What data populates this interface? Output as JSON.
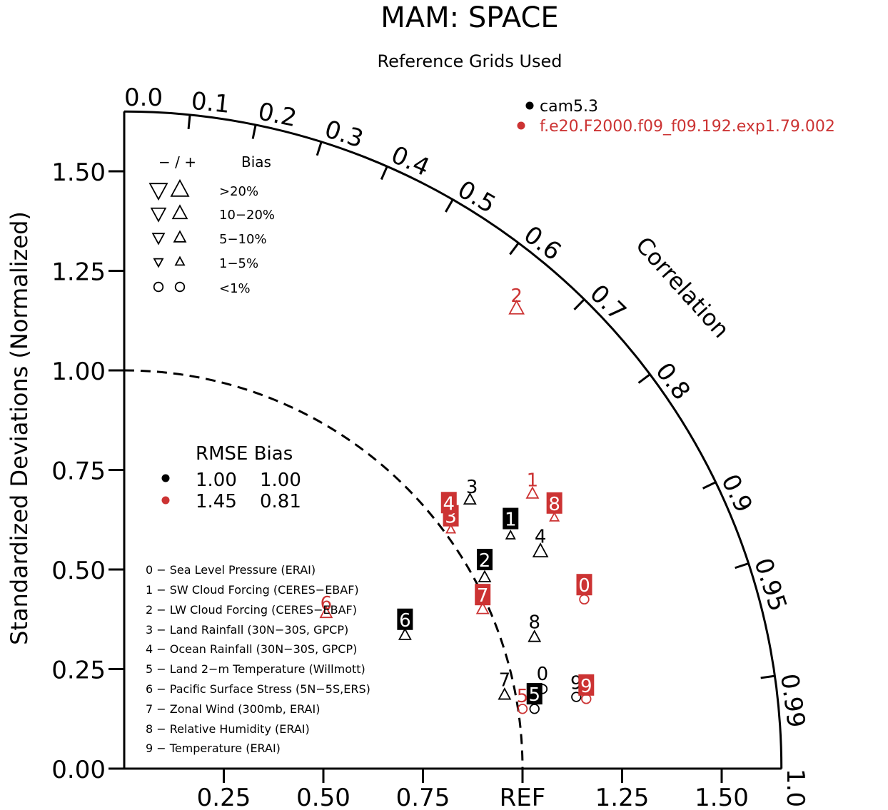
{
  "chart_data": {
    "type": "scatter",
    "subtype": "taylor-diagram",
    "title": "MAM: SPACE",
    "subtitle": "Reference Grids Used",
    "ylabel": "Standardized Deviations (Normalized)",
    "arc_label": "Correlation",
    "ref_label": "REF",
    "std_range": [
      0,
      1.65
    ],
    "y_ticks": [
      "0.00",
      "0.25",
      "0.50",
      "0.75",
      "1.00",
      "1.25",
      "1.50"
    ],
    "x_ticks": [
      "0.25",
      "0.50",
      "0.75",
      "1.25",
      "1.50"
    ],
    "correlation_ticks": [
      "0.0",
      "0.1",
      "0.2",
      "0.3",
      "0.4",
      "0.5",
      "0.6",
      "0.7",
      "0.8",
      "0.9",
      "0.95",
      "0.99",
      "1.0"
    ],
    "colors": {
      "cam": "#000000",
      "f20": "#cc3333"
    },
    "legend_cases": [
      {
        "name": "cam5.3",
        "color": "#000000"
      },
      {
        "name": "f.e20.F2000.f09_f09.192.exp1.79.002",
        "color": "#cc3333"
      }
    ],
    "bias_legend": {
      "header_sign": "− / +",
      "header_bias": "Bias",
      "rows": [
        {
          "label": ">20%",
          "symbol": "triangle",
          "size": 1.0
        },
        {
          "label": "10−20%",
          "symbol": "triangle",
          "size": 0.82
        },
        {
          "label": "5−10%",
          "symbol": "triangle",
          "size": 0.66
        },
        {
          "label": "1−5%",
          "symbol": "triangle",
          "size": 0.5
        },
        {
          "label": "<1%",
          "symbol": "circle",
          "size": 0.7
        }
      ]
    },
    "rmse_table": {
      "header": "RMSE Bias",
      "rows": [
        {
          "color": "#000000",
          "rmse": "1.00",
          "bias": "1.00"
        },
        {
          "color": "#cc3333",
          "rmse": "1.45",
          "bias": "0.81"
        }
      ]
    },
    "variables": [
      "0 − Sea Level Pressure (ERAI)",
      "1 − SW Cloud Forcing (CERES−EBAF)",
      "2 − LW Cloud Forcing (CERES−EBAF)",
      "3 − Land Rainfall (30N−30S, GPCP)",
      "4 − Ocean Rainfall (30N−30S, GPCP)",
      "5 − Land 2−m Temperature (Willmott)",
      "6 − Pacific Surface Stress (5N−5S,ERS)",
      "7 − Zonal Wind (300mb, ERAI)",
      "8 − Relative Humidity (ERAI)",
      "9 − Temperature (ERAI)"
    ],
    "series": [
      {
        "name": "cam5.3",
        "color": "#000000",
        "points": [
          {
            "label": "0",
            "x": 1.05,
            "y": 0.2,
            "marker": "circle",
            "size": 0.7,
            "boxed": false,
            "lx": 1.05,
            "ly": 0.24
          },
          {
            "label": "1",
            "x": 0.97,
            "y": 0.585,
            "marker": "triangle-up",
            "size": 0.5,
            "boxed": true,
            "lx": 0.97,
            "ly": 0.628
          },
          {
            "label": "2",
            "x": 0.905,
            "y": 0.48,
            "marker": "triangle-up",
            "size": 0.66,
            "boxed": true,
            "lx": 0.905,
            "ly": 0.525
          },
          {
            "label": "3",
            "x": 0.868,
            "y": 0.675,
            "marker": "triangle-up",
            "size": 0.66,
            "boxed": false,
            "lx": 0.873,
            "ly": 0.71
          },
          {
            "label": "4",
            "x": 1.045,
            "y": 0.545,
            "marker": "triangle-up",
            "size": 0.82,
            "boxed": false,
            "lx": 1.045,
            "ly": 0.585
          },
          {
            "label": "5",
            "x": 1.03,
            "y": 0.15,
            "marker": "circle",
            "size": 0.7,
            "boxed": true,
            "lx": 1.03,
            "ly": 0.188
          },
          {
            "label": "6",
            "x": 0.705,
            "y": 0.335,
            "marker": "triangle-up",
            "size": 0.66,
            "boxed": true,
            "lx": 0.705,
            "ly": 0.375
          },
          {
            "label": "7",
            "x": 0.955,
            "y": 0.185,
            "marker": "triangle-up",
            "size": 0.66,
            "boxed": false,
            "lx": 0.955,
            "ly": 0.225
          },
          {
            "label": "8",
            "x": 1.03,
            "y": 0.33,
            "marker": "triangle-up",
            "size": 0.66,
            "boxed": false,
            "lx": 1.03,
            "ly": 0.37
          },
          {
            "label": "9",
            "x": 1.135,
            "y": 0.18,
            "marker": "circle",
            "size": 0.7,
            "boxed": false,
            "lx": 1.135,
            "ly": 0.218
          }
        ]
      },
      {
        "name": "f.e20.F2000.f09_f09.192.exp1.79.002",
        "color": "#cc3333",
        "points": [
          {
            "label": "0",
            "x": 1.155,
            "y": 0.425,
            "marker": "circle",
            "size": 0.7,
            "boxed": true,
            "lx": 1.155,
            "ly": 0.462
          },
          {
            "label": "1",
            "x": 1.025,
            "y": 0.69,
            "marker": "triangle-up",
            "size": 0.66,
            "boxed": false,
            "lx": 1.025,
            "ly": 0.727
          },
          {
            "label": "2",
            "x": 0.985,
            "y": 1.155,
            "marker": "triangle-up",
            "size": 0.82,
            "boxed": false,
            "lx": 0.985,
            "ly": 1.19
          },
          {
            "label": "3",
            "x": 0.82,
            "y": 0.6,
            "marker": "triangle-up",
            "size": 0.5,
            "boxed": true,
            "lx": 0.82,
            "ly": 0.635
          },
          {
            "label": "4",
            "x": 0.815,
            "y": 0.668,
            "marker": "triangle-up",
            "size": 0.5,
            "boxed": true,
            "lx": 0.815,
            "ly": 0.668
          },
          {
            "label": "5",
            "x": 1.0,
            "y": 0.15,
            "marker": "circle",
            "size": 0.7,
            "boxed": false,
            "lx": 1.0,
            "ly": 0.185
          },
          {
            "label": "6",
            "x": 0.507,
            "y": 0.39,
            "marker": "triangle-up",
            "size": 0.66,
            "boxed": false,
            "lx": 0.507,
            "ly": 0.418
          },
          {
            "label": "7",
            "x": 0.9,
            "y": 0.4,
            "marker": "triangle-up",
            "size": 0.66,
            "boxed": true,
            "lx": 0.9,
            "ly": 0.437
          },
          {
            "label": "8",
            "x": 1.08,
            "y": 0.63,
            "marker": "triangle-up",
            "size": 0.5,
            "boxed": true,
            "lx": 1.08,
            "ly": 0.667
          },
          {
            "label": "9",
            "x": 1.16,
            "y": 0.175,
            "marker": "circle",
            "size": 0.7,
            "boxed": true,
            "lx": 1.16,
            "ly": 0.21
          }
        ]
      }
    ]
  }
}
